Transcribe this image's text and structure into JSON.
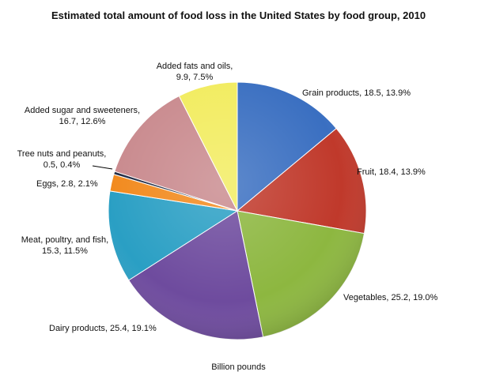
{
  "chart_data": {
    "type": "pie",
    "title": "Estimated total amount of food loss in the United States by food group, 2010",
    "unit_label": "Billion pounds",
    "slices": [
      {
        "name": "Grain products",
        "value": 18.5,
        "percent": "13.9%",
        "color": "#3a6fc1"
      },
      {
        "name": "Fruit",
        "value": 18.4,
        "percent": "13.9%",
        "color": "#c0392b"
      },
      {
        "name": "Vegetables",
        "value": 25.2,
        "percent": "19.0%",
        "color": "#8db740"
      },
      {
        "name": "Dairy products",
        "value": 25.4,
        "percent": "19.1%",
        "color": "#6e4b9e"
      },
      {
        "name": "Meat, poultry, and fish",
        "value": 15.3,
        "percent": "11.5%",
        "color": "#2a9fc4"
      },
      {
        "name": "Eggs",
        "value": 2.8,
        "percent": "2.1%",
        "color": "#f28a1e"
      },
      {
        "name": "Tree nuts and peanuts",
        "value": 0.5,
        "percent": "0.4%",
        "color": "#1f2a44"
      },
      {
        "name": "Added sugar and sweeteners",
        "value": 16.7,
        "percent": "12.6%",
        "color": "#c98a8e"
      },
      {
        "name": "Added fats and oils",
        "value": 9.9,
        "percent": "7.5%",
        "color": "#f2ec5f"
      }
    ]
  }
}
